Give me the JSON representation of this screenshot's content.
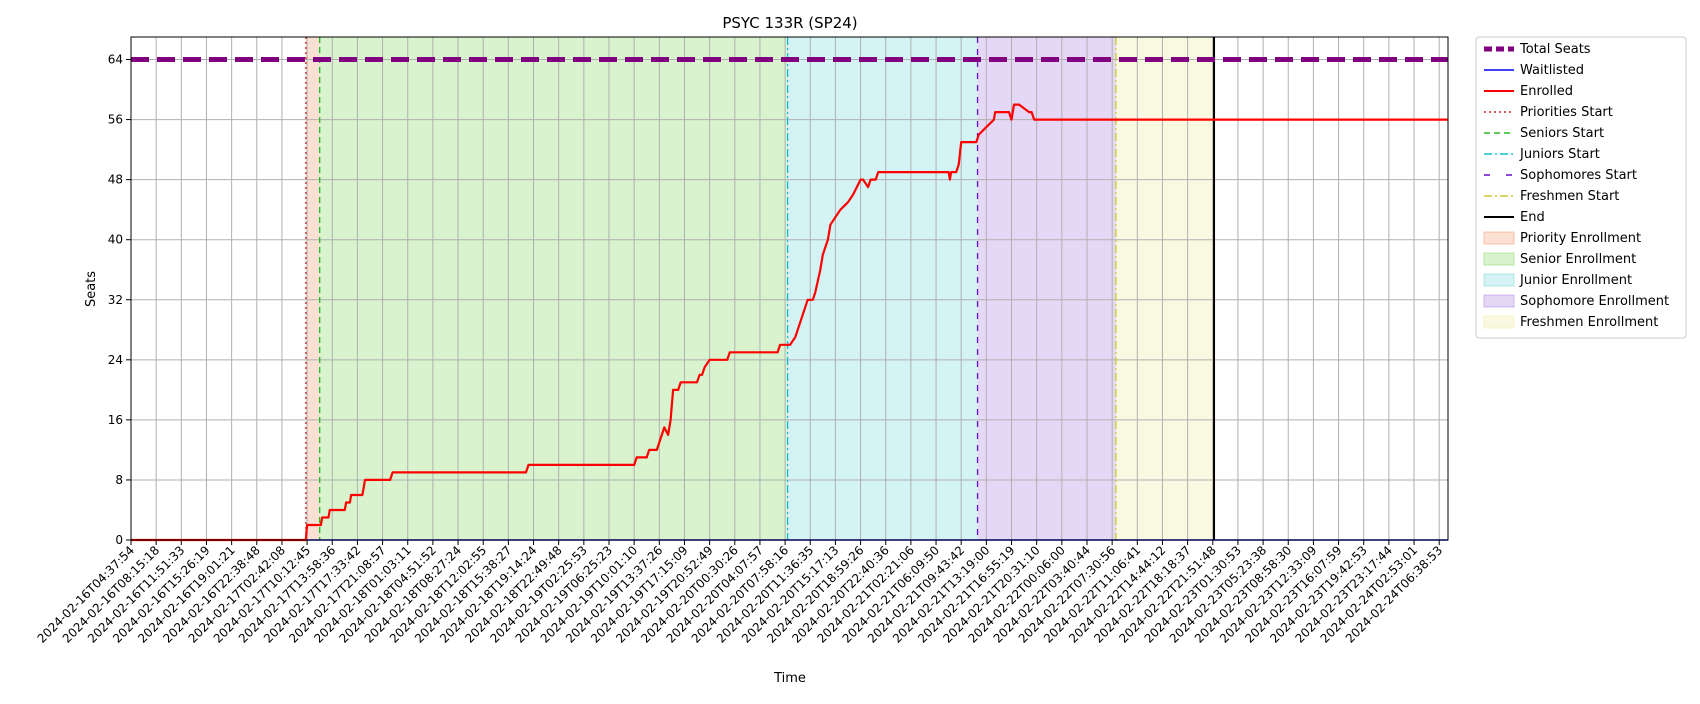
{
  "chart_data": {
    "type": "line",
    "title": "PSYC 133R (SP24)",
    "xlabel": "Time",
    "ylabel": "Seats",
    "ylim": [
      0,
      67
    ],
    "yticks": [
      0,
      8,
      16,
      24,
      32,
      40,
      48,
      56,
      64
    ],
    "xticks": [
      "2024-02-16T04:37:54",
      "2024-02-16T08:15:18",
      "2024-02-16T11:51:33",
      "2024-02-16T15:26:19",
      "2024-02-16T19:01:21",
      "2024-02-16T22:38:48",
      "2024-02-17T02:42:08",
      "2024-02-17T10:12:45",
      "2024-02-17T13:58:36",
      "2024-02-17T17:33:42",
      "2024-02-17T21:08:57",
      "2024-02-18T01:03:11",
      "2024-02-18T04:51:52",
      "2024-02-18T08:27:24",
      "2024-02-18T12:02:55",
      "2024-02-18T15:38:27",
      "2024-02-18T19:14:24",
      "2024-02-18T22:49:48",
      "2024-02-19T02:25:53",
      "2024-02-19T06:25:23",
      "2024-02-19T10:01:10",
      "2024-02-19T13:37:26",
      "2024-02-19T17:15:09",
      "2024-02-19T20:52:49",
      "2024-02-20T00:30:26",
      "2024-02-20T04:07:57",
      "2024-02-20T07:58:16",
      "2024-02-20T11:36:35",
      "2024-02-20T15:17:13",
      "2024-02-20T18:59:26",
      "2024-02-20T22:40:36",
      "2024-02-21T02:21:06",
      "2024-02-21T06:09:50",
      "2024-02-21T09:43:42",
      "2024-02-21T13:19:00",
      "2024-02-21T16:55:19",
      "2024-02-21T20:31:10",
      "2024-02-22T00:06:00",
      "2024-02-22T03:40:44",
      "2024-02-22T07:30:56",
      "2024-02-22T11:06:41",
      "2024-02-22T14:44:12",
      "2024-02-22T18:18:37",
      "2024-02-22T21:51:48",
      "2024-02-23T01:30:53",
      "2024-02-23T05:23:38",
      "2024-02-23T08:58:30",
      "2024-02-23T12:33:09",
      "2024-02-23T16:07:59",
      "2024-02-23T19:42:53",
      "2024-02-23T23:17:44",
      "2024-02-24T02:53:01",
      "2024-02-24T06:38:53"
    ],
    "x_index_range": [
      0,
      52.35
    ],
    "grid": true,
    "legend_position": "outside-right",
    "total_seats": 64,
    "phases": [
      {
        "name": "Priority Enrollment",
        "start": 6.95,
        "end": 7.5,
        "color": "#f4a582"
      },
      {
        "name": "Senior Enrollment",
        "start": 7.5,
        "end": 26.1,
        "color": "#90dc73"
      },
      {
        "name": "Junior Enrollment",
        "start": 26.1,
        "end": 33.65,
        "color": "#85dde0"
      },
      {
        "name": "Sophomore Enrollment",
        "start": 33.65,
        "end": 39.15,
        "color": "#b590e6"
      },
      {
        "name": "Freshmen Enrollment",
        "start": 39.15,
        "end": 43.05,
        "color": "#eeeeaa"
      }
    ],
    "markers": [
      {
        "name": "Priorities Start",
        "x": 6.95,
        "color": "#d62728",
        "dash": "2,3"
      },
      {
        "name": "Seniors Start",
        "x": 7.5,
        "color": "#22bb22",
        "dash": "6,4"
      },
      {
        "name": "Juniors Start",
        "x": 26.1,
        "color": "#17becf",
        "dash": "8,3,2,3"
      },
      {
        "name": "Sophomores Start",
        "x": 33.65,
        "color": "#6a0dcd",
        "dash": "6,6"
      },
      {
        "name": "Freshmen Start",
        "x": 39.15,
        "color": "#cccc33",
        "dash": "8,3,2,3"
      },
      {
        "name": "End",
        "x": 43.05,
        "color": "#000000",
        "dash": ""
      }
    ],
    "series": [
      {
        "name": "Total Seats",
        "color": "#800080",
        "style": "dashed",
        "constant": 64
      },
      {
        "name": "Waitlisted",
        "color": "#0000ff",
        "style": "solid",
        "x": [
          0,
          52.35
        ],
        "y": [
          0,
          0
        ]
      },
      {
        "name": "Enrolled",
        "color": "#ff0000",
        "style": "solid",
        "x": [
          0,
          6.95,
          7.0,
          7.5,
          7.55,
          7.6,
          7.85,
          7.9,
          8.5,
          8.55,
          8.7,
          8.75,
          9.2,
          9.3,
          10.3,
          10.4,
          15.7,
          15.8,
          20.0,
          20.1,
          20.5,
          20.6,
          20.9,
          21.0,
          21.1,
          21.2,
          21.35,
          21.45,
          21.55,
          21.6,
          21.75,
          21.85,
          22.5,
          22.6,
          22.7,
          22.8,
          23.0,
          23.1,
          23.7,
          23.8,
          25.7,
          25.8,
          26.1,
          26.2,
          26.4,
          26.5,
          26.6,
          26.7,
          26.8,
          26.9,
          27.1,
          27.2,
          27.4,
          27.5,
          27.7,
          27.8,
          28.0,
          28.2,
          28.5,
          28.7,
          29.0,
          29.1,
          29.3,
          29.4,
          29.6,
          29.7,
          30.0,
          30.1,
          30.2,
          30.4,
          30.6,
          30.8,
          32.5,
          32.55,
          32.6,
          32.8,
          32.9,
          33.0,
          33.6,
          33.7,
          34.3,
          34.35,
          34.9,
          35.0,
          35.1,
          35.2,
          35.3,
          35.7,
          35.8,
          35.9,
          36.0,
          52.35
        ],
        "y": [
          0,
          0,
          2,
          2,
          2,
          3,
          3,
          4,
          4,
          5,
          5,
          6,
          6,
          8,
          8,
          9,
          9,
          10,
          10,
          11,
          11,
          12,
          12,
          13,
          14,
          15,
          14,
          16,
          20,
          20,
          20,
          21,
          21,
          22,
          22,
          23,
          24,
          24,
          24,
          25,
          25,
          26,
          26,
          26,
          27,
          28,
          29,
          30,
          31,
          32,
          32,
          33,
          36,
          38,
          40,
          42,
          43,
          44,
          45,
          46,
          48,
          48,
          47,
          48,
          48,
          49,
          49,
          49,
          49,
          49,
          49,
          49,
          49,
          48,
          49,
          49,
          50,
          53,
          53,
          54,
          56,
          57,
          57,
          56,
          58,
          58,
          58,
          57,
          57,
          56,
          56,
          56
        ]
      }
    ]
  },
  "legend": {
    "items": [
      {
        "label": "Total Seats",
        "kind": "line",
        "color": "#800080",
        "dash": "8,4",
        "width": 5
      },
      {
        "label": "Waitlisted",
        "kind": "line",
        "color": "#0000ff",
        "dash": "",
        "width": 1.5
      },
      {
        "label": "Enrolled",
        "kind": "line",
        "color": "#ff0000",
        "dash": "",
        "width": 2
      },
      {
        "label": "Priorities Start",
        "kind": "line",
        "color": "#d62728",
        "dash": "2,3",
        "width": 1.5
      },
      {
        "label": "Seniors Start",
        "kind": "line",
        "color": "#22bb22",
        "dash": "6,4",
        "width": 1.5
      },
      {
        "label": "Juniors Start",
        "kind": "line",
        "color": "#17becf",
        "dash": "8,3,2,3",
        "width": 1.5
      },
      {
        "label": "Sophomores Start",
        "kind": "line",
        "color": "#6a0dcd",
        "dash": "6,16",
        "width": 1.5
      },
      {
        "label": "Freshmen Start",
        "kind": "line",
        "color": "#cccc33",
        "dash": "8,3,2,3",
        "width": 1.5
      },
      {
        "label": "End",
        "kind": "line",
        "color": "#000000",
        "dash": "",
        "width": 2
      },
      {
        "label": "Priority Enrollment",
        "kind": "patch",
        "color": "#f4a582"
      },
      {
        "label": "Senior Enrollment",
        "kind": "patch",
        "color": "#90dc73"
      },
      {
        "label": "Junior Enrollment",
        "kind": "patch",
        "color": "#85dde0"
      },
      {
        "label": "Sophomore Enrollment",
        "kind": "patch",
        "color": "#b590e6"
      },
      {
        "label": "Freshmen Enrollment",
        "kind": "patch",
        "color": "#eeeeaa"
      }
    ]
  }
}
